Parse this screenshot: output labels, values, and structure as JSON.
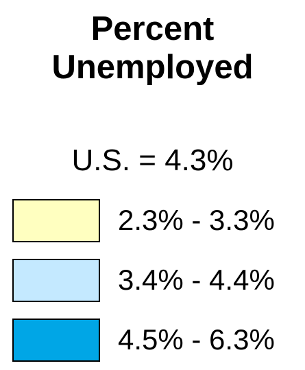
{
  "legend": {
    "title": "Percent Unemployed",
    "subtitle": "U.S. = 4.3%",
    "items": [
      {
        "label": "2.3% - 3.3%",
        "color": "#ffffc0"
      },
      {
        "label": "3.4% - 4.4%",
        "color": "#c4e9ff"
      },
      {
        "label": "4.5% - 6.3%",
        "color": "#00a6e6"
      }
    ]
  }
}
